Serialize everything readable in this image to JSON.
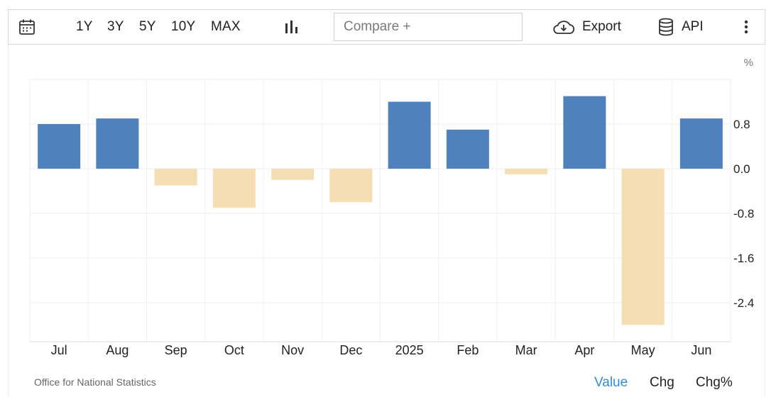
{
  "toolbar": {
    "ranges": [
      "1Y",
      "3Y",
      "5Y",
      "10Y",
      "MAX"
    ],
    "compare_placeholder": "Compare +",
    "export_label": "Export",
    "api_label": "API"
  },
  "footer": {
    "source": "Office for National Statistics",
    "modes": [
      "Value",
      "Chg",
      "Chg%"
    ],
    "active_mode": "Value"
  },
  "colors": {
    "positive": "#4f81bd",
    "negative": "#f5deb3",
    "active_mode": "#2e8ed8"
  },
  "chart_data": {
    "type": "bar",
    "unit": "%",
    "categories": [
      "Jul",
      "Aug",
      "Sep",
      "Oct",
      "Nov",
      "Dec",
      "2025",
      "Feb",
      "Mar",
      "Apr",
      "May",
      "Jun"
    ],
    "values": [
      0.8,
      0.9,
      -0.3,
      -0.7,
      -0.2,
      -0.6,
      1.2,
      0.7,
      -0.1,
      1.3,
      -2.8,
      0.9
    ],
    "yticks": [
      "0.8",
      "0.0",
      "-0.8",
      "-1.6",
      "-2.4"
    ],
    "ytick_values": [
      0.8,
      0.0,
      -0.8,
      -1.6,
      -2.4
    ],
    "ylim": [
      -3.1,
      1.6
    ],
    "grid": true,
    "yaxis_position": "right"
  }
}
